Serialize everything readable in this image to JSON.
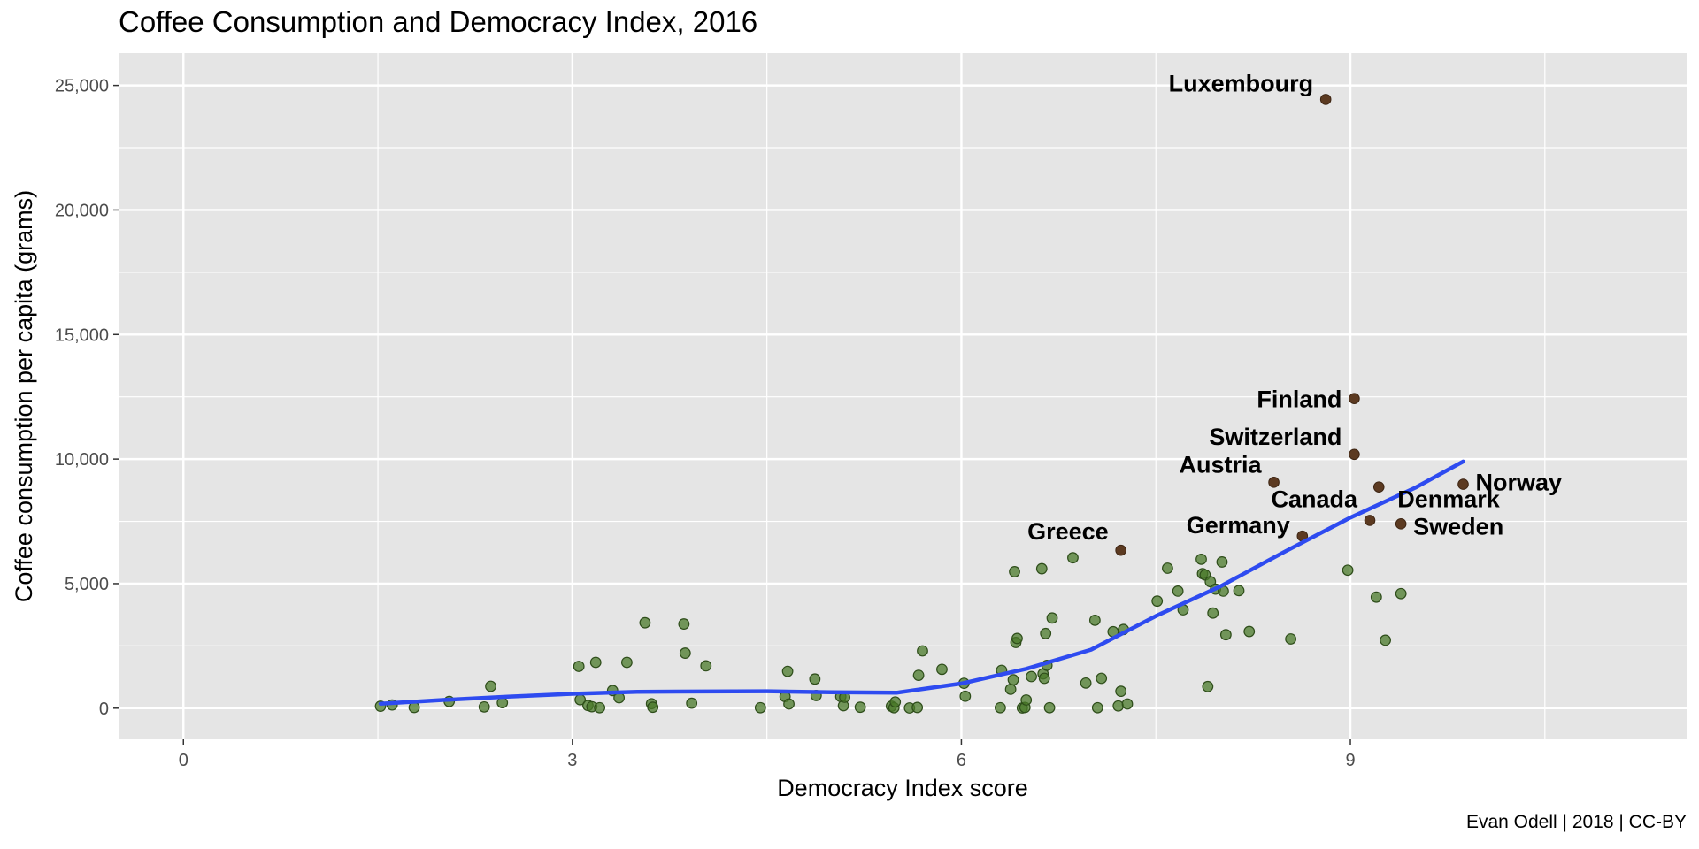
{
  "chart_data": {
    "type": "scatter",
    "title": "Coffee Consumption and Democracy Index, 2016",
    "caption": "Evan Odell | 2018 | CC-BY",
    "xlabel": "Democracy Index score",
    "ylabel": "Coffee consumption per capita (grams)",
    "xlim": [
      -0.5,
      11.6
    ],
    "ylim": [
      -1250,
      26300
    ],
    "x_ticks": [
      0,
      3,
      6,
      9
    ],
    "x_tick_labels": [
      "0",
      "3",
      "6",
      "9"
    ],
    "y_ticks": [
      0,
      5000,
      10000,
      15000,
      20000,
      25000
    ],
    "y_tick_labels": [
      "0",
      "5,000",
      "10,000",
      "15,000",
      "20,000",
      "25,000"
    ],
    "grid": true,
    "colors": {
      "panel": "#e5e5e5",
      "grid": "#ffffff",
      "point": "#4a7a2a",
      "point_stroke": "#2e4d1a",
      "highlight": "#5c3a21",
      "trend": "#2e4bf0"
    },
    "series": [
      {
        "points": [
          [
            1.52,
            80
          ],
          [
            1.61,
            130
          ],
          [
            1.78,
            30
          ],
          [
            2.05,
            270
          ],
          [
            2.32,
            50
          ],
          [
            2.37,
            880
          ],
          [
            2.46,
            220
          ],
          [
            3.05,
            1680
          ],
          [
            3.06,
            340
          ],
          [
            3.12,
            110
          ],
          [
            3.15,
            60
          ],
          [
            3.18,
            1840
          ],
          [
            3.21,
            20
          ],
          [
            3.31,
            710
          ],
          [
            3.36,
            420
          ],
          [
            3.42,
            1840
          ],
          [
            3.56,
            3430
          ],
          [
            3.61,
            180
          ],
          [
            3.62,
            40
          ],
          [
            3.86,
            3380
          ],
          [
            3.87,
            2210
          ],
          [
            3.92,
            200
          ],
          [
            4.03,
            1700
          ],
          [
            4.45,
            20
          ],
          [
            4.64,
            470
          ],
          [
            4.66,
            1480
          ],
          [
            4.67,
            170
          ],
          [
            4.87,
            1170
          ],
          [
            4.88,
            510
          ],
          [
            5.07,
            470
          ],
          [
            5.09,
            100
          ],
          [
            5.1,
            440
          ],
          [
            5.22,
            40
          ],
          [
            5.46,
            80
          ],
          [
            5.48,
            20
          ],
          [
            5.49,
            250
          ],
          [
            5.6,
            10
          ],
          [
            5.66,
            30
          ],
          [
            5.67,
            1320
          ],
          [
            5.7,
            2300
          ],
          [
            5.85,
            1560
          ],
          [
            6.02,
            1000
          ],
          [
            6.03,
            480
          ],
          [
            6.3,
            20
          ],
          [
            6.31,
            1520
          ],
          [
            6.38,
            760
          ],
          [
            6.4,
            1140
          ],
          [
            6.41,
            5480
          ],
          [
            6.42,
            2640
          ],
          [
            6.43,
            2800
          ],
          [
            6.47,
            10
          ],
          [
            6.49,
            30
          ],
          [
            6.5,
            330
          ],
          [
            6.54,
            1270
          ],
          [
            6.62,
            5600
          ],
          [
            6.63,
            1380
          ],
          [
            6.64,
            1200
          ],
          [
            6.65,
            3000
          ],
          [
            6.66,
            1720
          ],
          [
            6.7,
            3620
          ],
          [
            6.68,
            20
          ],
          [
            6.86,
            6040
          ],
          [
            6.96,
            1010
          ],
          [
            7.03,
            3530
          ],
          [
            7.05,
            20
          ],
          [
            7.08,
            1200
          ],
          [
            7.17,
            3070
          ],
          [
            7.21,
            90
          ],
          [
            7.23,
            680
          ],
          [
            7.25,
            3160
          ],
          [
            7.28,
            170
          ],
          [
            7.51,
            4300
          ],
          [
            7.59,
            5620
          ],
          [
            7.67,
            4700
          ],
          [
            7.71,
            3950
          ],
          [
            7.85,
            5980
          ],
          [
            7.86,
            5400
          ],
          [
            7.88,
            5350
          ],
          [
            7.9,
            870
          ],
          [
            7.92,
            5080
          ],
          [
            7.94,
            3820
          ],
          [
            7.96,
            4780
          ],
          [
            8.01,
            5870
          ],
          [
            8.02,
            4700
          ],
          [
            8.04,
            2950
          ],
          [
            8.14,
            4720
          ],
          [
            8.22,
            3080
          ],
          [
            8.54,
            2780
          ],
          [
            8.98,
            5540
          ],
          [
            9.2,
            4460
          ],
          [
            9.27,
            2730
          ],
          [
            9.39,
            4600
          ]
        ]
      },
      {
        "points": [
          [
            8.81,
            24440
          ],
          [
            9.03,
            12430
          ],
          [
            9.03,
            10190
          ],
          [
            8.41,
            9070
          ],
          [
            9.22,
            8880
          ],
          [
            9.87,
            8990
          ],
          [
            9.15,
            7540
          ],
          [
            9.39,
            7400
          ],
          [
            8.63,
            6910
          ],
          [
            7.23,
            6340
          ]
        ]
      }
    ],
    "labels": [
      {
        "text": "Luxembourg",
        "x": 8.81,
        "y": 24440
      },
      {
        "text": "Finland",
        "x": 9.03,
        "y": 12430
      },
      {
        "text": "Switzerland",
        "x": 9.03,
        "y": 10190
      },
      {
        "text": "Austria",
        "x": 8.41,
        "y": 9070
      },
      {
        "text": "Norway",
        "x": 9.87,
        "y": 8990
      },
      {
        "text": "Canada",
        "x": 9.15,
        "y": 7540
      },
      {
        "text": "Denmark",
        "x": 9.22,
        "y": 8880
      },
      {
        "text": "Sweden",
        "x": 9.39,
        "y": 7400
      },
      {
        "text": "Germany",
        "x": 8.63,
        "y": 6910
      },
      {
        "text": "Greece",
        "x": 7.23,
        "y": 6340
      }
    ],
    "trend": [
      [
        1.52,
        180
      ],
      [
        2.0,
        330
      ],
      [
        2.5,
        460
      ],
      [
        3.0,
        580
      ],
      [
        3.5,
        660
      ],
      [
        4.0,
        670
      ],
      [
        4.5,
        680
      ],
      [
        5.0,
        640
      ],
      [
        5.5,
        620
      ],
      [
        6.0,
        990
      ],
      [
        6.5,
        1580
      ],
      [
        7.0,
        2350
      ],
      [
        7.5,
        3700
      ],
      [
        8.0,
        4900
      ],
      [
        8.5,
        6300
      ],
      [
        9.0,
        7650
      ],
      [
        9.5,
        8850
      ],
      [
        9.87,
        9900
      ]
    ]
  }
}
